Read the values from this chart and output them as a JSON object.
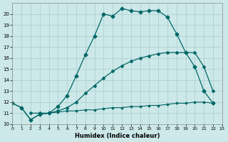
{
  "xlabel": "Humidex (Indice chaleur)",
  "bg_color": "#cce8e8",
  "line_color": "#006666",
  "grid_color": "#aacccc",
  "xlim": [
    0,
    23
  ],
  "ylim": [
    10,
    21
  ],
  "yticks": [
    10,
    11,
    12,
    13,
    14,
    15,
    16,
    17,
    18,
    19,
    20
  ],
  "xticks": [
    0,
    1,
    2,
    3,
    4,
    5,
    6,
    7,
    8,
    9,
    10,
    11,
    12,
    13,
    14,
    15,
    16,
    17,
    18,
    19,
    20,
    21,
    22,
    23
  ],
  "series": [
    {
      "x": [
        0,
        1,
        2,
        3,
        4,
        5,
        6,
        7,
        8,
        9,
        10,
        11,
        12,
        13,
        14,
        15,
        16,
        17,
        18,
        19,
        20,
        21,
        22
      ],
      "y": [
        11.9,
        11.5,
        10.4,
        10.9,
        11.0,
        11.1,
        11.2,
        11.2,
        11.3,
        11.3,
        11.4,
        11.5,
        11.5,
        11.6,
        11.6,
        11.7,
        11.7,
        11.8,
        11.9,
        11.9,
        12.0,
        12.0,
        11.9
      ],
      "lw": 0.8,
      "ms": 1.5,
      "ls": "-"
    },
    {
      "x": [
        2,
        3,
        4,
        5,
        6,
        7,
        8,
        9,
        10,
        11,
        12,
        13,
        14,
        15,
        16,
        17,
        18,
        19,
        20,
        21,
        22
      ],
      "y": [
        11.0,
        11.0,
        11.0,
        11.2,
        11.5,
        12.0,
        12.8,
        13.5,
        14.2,
        14.8,
        15.3,
        15.7,
        16.0,
        16.2,
        16.4,
        16.5,
        16.5,
        16.5,
        16.5,
        15.2,
        13.0
      ],
      "lw": 0.9,
      "ms": 2.0,
      "ls": "-"
    },
    {
      "x": [
        0,
        1,
        2,
        3,
        4,
        5,
        6,
        7,
        8,
        9,
        10,
        11,
        12,
        13,
        14,
        15,
        16,
        17,
        18,
        19,
        20,
        21,
        22
      ],
      "y": [
        11.9,
        11.5,
        10.4,
        10.9,
        11.0,
        11.6,
        12.6,
        14.4,
        16.3,
        18.0,
        20.0,
        19.8,
        20.5,
        20.3,
        20.2,
        20.3,
        20.3,
        19.7,
        18.2,
        16.5,
        15.2,
        13.0,
        11.9
      ],
      "lw": 0.9,
      "ms": 2.5,
      "ls": "-"
    }
  ]
}
